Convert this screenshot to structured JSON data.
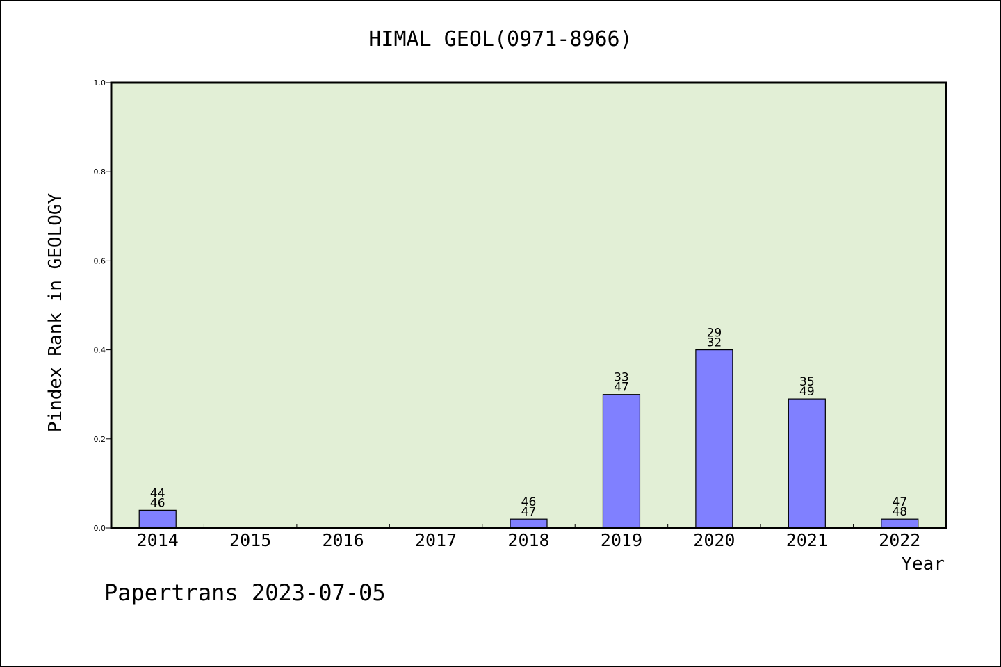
{
  "chart_data": {
    "type": "bar",
    "title": "HIMAL GEOL(0971-8966)",
    "xlabel": "Year",
    "ylabel": "Pindex Rank in GEOLOGY",
    "footer": "Papertrans 2023-07-05",
    "categories": [
      "2014",
      "2015",
      "2016",
      "2017",
      "2018",
      "2019",
      "2020",
      "2021",
      "2022"
    ],
    "values": [
      0.04,
      0,
      0,
      0,
      0.02,
      0.3,
      0.4,
      0.29,
      0.02
    ],
    "label_top": [
      "44",
      "",
      "",
      "",
      "46",
      "33",
      "29",
      "35",
      "47"
    ],
    "label_bottom": [
      "46",
      "",
      "",
      "",
      "47",
      "47",
      "32",
      "49",
      "48"
    ],
    "ylim": [
      0,
      1.0
    ],
    "yticks": [
      "0.0",
      "0.2",
      "0.4",
      "0.6",
      "0.8",
      "1.0"
    ],
    "grid": false,
    "colors": {
      "plot_background": "#e2efd6",
      "bar_fill": "#8080ff",
      "axis": "#000000"
    }
  }
}
